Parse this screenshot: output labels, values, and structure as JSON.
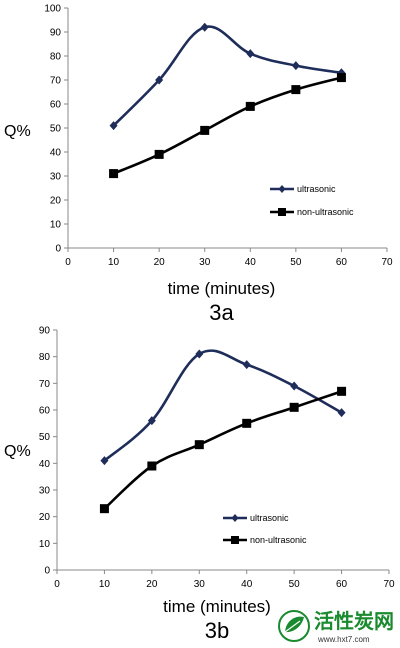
{
  "chart_data": [
    {
      "type": "line",
      "x": [
        10,
        20,
        30,
        40,
        50,
        60
      ],
      "series": [
        {
          "name": "ultrasonic",
          "values": [
            51,
            70,
            92,
            81,
            76,
            73
          ],
          "marker": "diamond",
          "color": "#1f2d5a"
        },
        {
          "name": "non-ultrasonic",
          "values": [
            31,
            39,
            49,
            59,
            66,
            71
          ],
          "marker": "square",
          "color": "#000000"
        }
      ],
      "ylabel": "Q%",
      "xlabel": "time (minutes)",
      "panel_label": "3a",
      "xlim": [
        0,
        70
      ],
      "ylim": [
        0,
        100
      ],
      "xticks": [
        0,
        10,
        20,
        30,
        40,
        50,
        60,
        70
      ],
      "yticks": [
        0,
        10,
        20,
        30,
        40,
        50,
        60,
        70,
        80,
        90,
        100
      ],
      "grid": false,
      "legend_position": "right"
    },
    {
      "type": "line",
      "x": [
        10,
        20,
        30,
        40,
        50,
        60
      ],
      "series": [
        {
          "name": "ultrasonic",
          "values": [
            41,
            56,
            81,
            77,
            69,
            59
          ],
          "marker": "diamond",
          "color": "#1f2d5a"
        },
        {
          "name": "non-ultrasonic",
          "values": [
            23,
            39,
            47,
            55,
            61,
            67
          ],
          "marker": "square",
          "color": "#000000"
        }
      ],
      "ylabel": "Q%",
      "xlabel": "time (minutes)",
      "panel_label": "3b",
      "xlim": [
        0,
        70
      ],
      "ylim": [
        0,
        90
      ],
      "xticks": [
        0,
        10,
        20,
        30,
        40,
        50,
        60,
        70
      ],
      "yticks": [
        0,
        10,
        20,
        30,
        40,
        50,
        60,
        70,
        80,
        90
      ],
      "grid": false,
      "legend_position": "center-right"
    }
  ],
  "watermark": {
    "text": "活性炭网",
    "url": "www.hxt7.com",
    "icon": "leaf-logo-icon",
    "color": "#1a8a2e"
  }
}
